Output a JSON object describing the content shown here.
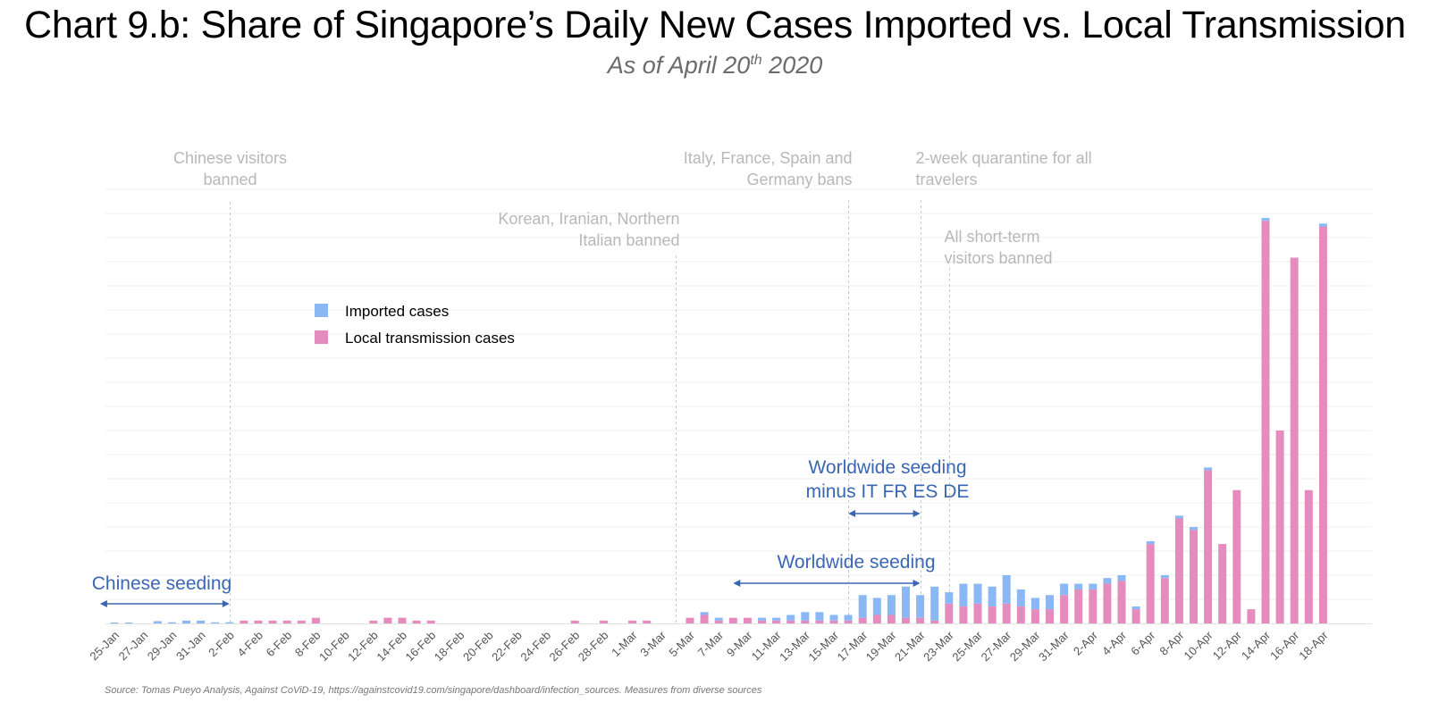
{
  "title": "Chart 9.b: Share of Singapore’s Daily New Cases Imported vs. Local Transmission",
  "subtitle": {
    "prefix": "As of April 20",
    "sup": "th",
    "suffix": " 2020"
  },
  "source": "Source: Tomas Pueyo Analysis, Against CoViD-19, https://againstcovid19.com/singapore/dashboard/infection_sources. Measures from diverse sources",
  "colors": {
    "imported": "#8ab8f4",
    "local": "#e58bbd",
    "annotation": "#b8b8b8",
    "arrow": "#3a66b4",
    "grid": "#efefef"
  },
  "chart_data": {
    "type": "bar",
    "stacked": true,
    "ylim": [
      0,
      160
    ],
    "grid": true,
    "legend_position": "upper-left",
    "categories": [
      "25-Jan",
      "26-Jan",
      "27-Jan",
      "28-Jan",
      "29-Jan",
      "30-Jan",
      "31-Jan",
      "1-Feb",
      "2-Feb",
      "3-Feb",
      "4-Feb",
      "5-Feb",
      "6-Feb",
      "7-Feb",
      "8-Feb",
      "9-Feb",
      "10-Feb",
      "11-Feb",
      "12-Feb",
      "13-Feb",
      "14-Feb",
      "15-Feb",
      "16-Feb",
      "17-Feb",
      "18-Feb",
      "19-Feb",
      "20-Feb",
      "21-Feb",
      "22-Feb",
      "23-Feb",
      "24-Feb",
      "25-Feb",
      "26-Feb",
      "27-Feb",
      "28-Feb",
      "29-Feb",
      "1-Mar",
      "2-Mar",
      "3-Mar",
      "4-Mar",
      "5-Mar",
      "6-Mar",
      "7-Mar",
      "8-Mar",
      "9-Mar",
      "10-Mar",
      "11-Mar",
      "12-Mar",
      "13-Mar",
      "14-Mar",
      "15-Mar",
      "16-Mar",
      "17-Mar",
      "18-Mar",
      "19-Mar",
      "20-Mar",
      "21-Mar",
      "22-Mar",
      "23-Mar",
      "24-Mar",
      "25-Mar",
      "26-Mar",
      "27-Mar",
      "28-Mar",
      "29-Mar",
      "30-Mar",
      "31-Mar",
      "1-Apr",
      "2-Apr",
      "3-Apr",
      "4-Apr",
      "5-Apr",
      "6-Apr",
      "7-Apr",
      "8-Apr",
      "9-Apr",
      "10-Apr",
      "11-Apr",
      "12-Apr",
      "13-Apr",
      "14-Apr",
      "15-Apr",
      "16-Apr",
      "17-Apr",
      "18-Apr"
    ],
    "tick_labels": [
      "25-Jan",
      "27-Jan",
      "29-Jan",
      "31-Jan",
      "2-Feb",
      "4-Feb",
      "6-Feb",
      "8-Feb",
      "10-Feb",
      "12-Feb",
      "14-Feb",
      "16-Feb",
      "18-Feb",
      "20-Feb",
      "22-Feb",
      "24-Feb",
      "26-Feb",
      "28-Feb",
      "1-Mar",
      "3-Mar",
      "5-Mar",
      "7-Mar",
      "9-Mar",
      "11-Mar",
      "13-Mar",
      "15-Mar",
      "17-Mar",
      "19-Mar",
      "21-Mar",
      "23-Mar",
      "25-Mar",
      "27-Mar",
      "29-Mar",
      "31-Mar",
      "2-Apr",
      "4-Apr",
      "6-Apr",
      "8-Apr",
      "10-Apr",
      "12-Apr",
      "14-Apr",
      "16-Apr",
      "18-Apr"
    ],
    "series": [
      {
        "name": "Local transmission cases",
        "values": [
          0,
          0,
          0,
          0,
          0,
          0,
          0,
          0,
          0,
          1,
          1,
          1,
          1,
          1,
          2,
          0,
          0,
          0,
          1,
          2,
          2,
          1,
          1,
          0,
          0,
          0,
          0,
          0,
          0,
          0,
          0,
          0,
          1,
          0,
          1,
          0,
          1,
          1,
          0,
          0,
          2,
          3,
          1,
          2,
          2,
          1,
          1,
          1,
          1,
          1,
          1,
          1,
          2,
          3,
          3,
          2,
          2,
          1,
          7,
          6,
          7,
          6,
          7,
          6,
          5,
          5,
          10,
          12,
          12,
          14,
          15,
          5,
          28,
          16,
          37,
          33,
          54,
          28,
          47,
          5,
          142,
          68,
          129,
          47,
          140
        ]
      },
      {
        "name": "Imported cases",
        "values": [
          0.3,
          0.3,
          0,
          0.8,
          0.4,
          1,
          1,
          0.4,
          0.4,
          0,
          0,
          0,
          0,
          0,
          0,
          0,
          0,
          0,
          0,
          0,
          0,
          0,
          0,
          0,
          0,
          0,
          0,
          0,
          0,
          0,
          0,
          0,
          0,
          0,
          0,
          0,
          0,
          0,
          0,
          0,
          0,
          1,
          1,
          0,
          0,
          1,
          1,
          2,
          3,
          3,
          2,
          2,
          8,
          6,
          7,
          11,
          8,
          12,
          4,
          8,
          7,
          7,
          10,
          6,
          4,
          5,
          4,
          2,
          2,
          2,
          2,
          1,
          1,
          1,
          1,
          1,
          1,
          0,
          0,
          0,
          1,
          0,
          0,
          0,
          1
        ]
      }
    ],
    "annotations": [
      {
        "label": "Chinese visitors banned",
        "lines": [
          "Chinese visitors",
          "banned"
        ],
        "category": "2-Feb",
        "align": "center"
      },
      {
        "label": "Korean, Iranian, Northern Italian banned",
        "lines": [
          "Korean, Iranian, Northern",
          "Italian banned"
        ],
        "category": "4-Mar",
        "align": "end"
      },
      {
        "label": "Italy, France, Spain and Germany bans",
        "lines": [
          "Italy, France, Spain and",
          "Germany bans"
        ],
        "category": "16-Mar",
        "align": "end"
      },
      {
        "label": "2-week quarantine for all travelers",
        "lines": [
          "2-week quarantine for all",
          "travelers"
        ],
        "category": "21-Mar",
        "align": "start"
      },
      {
        "label": "All short-term visitors banned",
        "lines": [
          "All short-term",
          "visitors banned"
        ],
        "category": "23-Mar",
        "align": "start"
      }
    ],
    "ranges": [
      {
        "label": "Chinese seeding",
        "lines": [
          "Chinese seeding"
        ],
        "from": "24-Jan",
        "to": "2-Feb"
      },
      {
        "label": "Worldwide seeding",
        "lines": [
          "Worldwide seeding"
        ],
        "from": "8-Mar",
        "to": "21-Mar"
      },
      {
        "label": "Worldwide seeding minus IT FR ES DE",
        "lines": [
          "Worldwide seeding",
          "minus IT FR ES DE"
        ],
        "from": "16-Mar",
        "to": "21-Mar"
      }
    ]
  }
}
